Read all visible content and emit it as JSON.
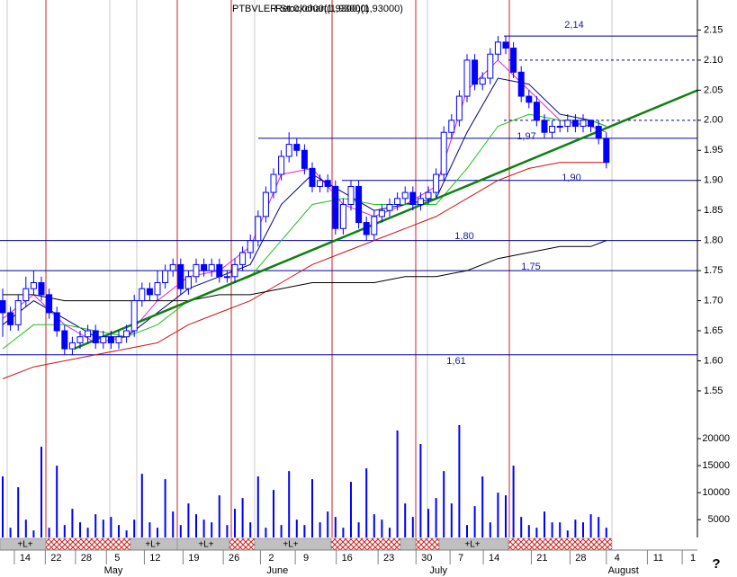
{
  "chart_data": {
    "type": "candlestick",
    "title": "PTBVLER Stockchart(1,93000)",
    "subtitle": "Ret:0,0000(1,9300)(1,93000)",
    "ylim": [
      1.52,
      2.2
    ],
    "yticks": [
      1.55,
      {
        "value": 1.6,
        "label": "1.60"
      },
      1.65,
      {
        "value": 1.7,
        "label": "1.70"
      },
      1.75,
      {
        "value": 1.8,
        "label": "1.80"
      },
      1.85,
      {
        "value": 1.9,
        "label": "1.90"
      },
      1.95,
      {
        "value": 2.0,
        "label": "2.00"
      },
      2.05,
      {
        "value": 2.1,
        "label": "2.10"
      },
      2.15
    ],
    "up_color": "#ffffff",
    "down_color": "#0000ff",
    "edge_color": "#0000ff",
    "ohlc": [
      [
        1.7,
        1.72,
        1.64,
        1.68
      ],
      [
        1.68,
        1.69,
        1.65,
        1.66
      ],
      [
        1.66,
        1.71,
        1.65,
        1.7
      ],
      [
        1.7,
        1.74,
        1.69,
        1.72
      ],
      [
        1.72,
        1.75,
        1.71,
        1.73
      ],
      [
        1.73,
        1.74,
        1.7,
        1.71
      ],
      [
        1.71,
        1.72,
        1.67,
        1.68
      ],
      [
        1.68,
        1.69,
        1.64,
        1.65
      ],
      [
        1.65,
        1.66,
        1.61,
        1.62
      ],
      [
        1.62,
        1.64,
        1.61,
        1.63
      ],
      [
        1.63,
        1.65,
        1.62,
        1.64
      ],
      [
        1.64,
        1.66,
        1.63,
        1.65
      ],
      [
        1.65,
        1.66,
        1.62,
        1.63
      ],
      [
        1.63,
        1.65,
        1.62,
        1.64
      ],
      [
        1.64,
        1.65,
        1.62,
        1.63
      ],
      [
        1.63,
        1.65,
        1.62,
        1.64
      ],
      [
        1.64,
        1.66,
        1.63,
        1.65
      ],
      [
        1.65,
        1.71,
        1.64,
        1.7
      ],
      [
        1.7,
        1.73,
        1.69,
        1.72
      ],
      [
        1.72,
        1.73,
        1.7,
        1.71
      ],
      [
        1.71,
        1.75,
        1.7,
        1.73
      ],
      [
        1.73,
        1.76,
        1.72,
        1.75
      ],
      [
        1.75,
        1.77,
        1.74,
        1.76
      ],
      [
        1.76,
        1.77,
        1.71,
        1.72
      ],
      [
        1.72,
        1.75,
        1.71,
        1.74
      ],
      [
        1.74,
        1.77,
        1.73,
        1.76
      ],
      [
        1.76,
        1.77,
        1.74,
        1.75
      ],
      [
        1.75,
        1.77,
        1.74,
        1.76
      ],
      [
        1.76,
        1.77,
        1.73,
        1.74
      ],
      [
        1.74,
        1.75,
        1.73,
        1.74
      ],
      [
        1.74,
        1.77,
        1.73,
        1.76
      ],
      [
        1.76,
        1.79,
        1.75,
        1.78
      ],
      [
        1.78,
        1.81,
        1.77,
        1.8
      ],
      [
        1.8,
        1.85,
        1.79,
        1.84
      ],
      [
        1.84,
        1.89,
        1.83,
        1.88
      ],
      [
        1.88,
        1.92,
        1.87,
        1.91
      ],
      [
        1.91,
        1.95,
        1.9,
        1.94
      ],
      [
        1.94,
        1.98,
        1.93,
        1.96
      ],
      [
        1.96,
        1.97,
        1.94,
        1.95
      ],
      [
        1.95,
        1.96,
        1.91,
        1.92
      ],
      [
        1.92,
        1.93,
        1.88,
        1.89
      ],
      [
        1.89,
        1.91,
        1.88,
        1.9
      ],
      [
        1.9,
        1.91,
        1.88,
        1.89
      ],
      [
        1.89,
        1.9,
        1.81,
        1.82
      ],
      [
        1.82,
        1.87,
        1.81,
        1.86
      ],
      [
        1.86,
        1.9,
        1.85,
        1.89
      ],
      [
        1.89,
        1.9,
        1.82,
        1.83
      ],
      [
        1.83,
        1.84,
        1.8,
        1.81
      ],
      [
        1.81,
        1.85,
        1.8,
        1.84
      ],
      [
        1.84,
        1.86,
        1.83,
        1.85
      ],
      [
        1.85,
        1.87,
        1.84,
        1.86
      ],
      [
        1.86,
        1.88,
        1.85,
        1.87
      ],
      [
        1.87,
        1.89,
        1.86,
        1.88
      ],
      [
        1.88,
        1.89,
        1.85,
        1.86
      ],
      [
        1.86,
        1.88,
        1.85,
        1.87
      ],
      [
        1.87,
        1.89,
        1.86,
        1.88
      ],
      [
        1.88,
        1.92,
        1.87,
        1.91
      ],
      [
        1.91,
        1.99,
        1.9,
        1.98
      ],
      [
        1.98,
        2.01,
        1.97,
        2.0
      ],
      [
        2.0,
        2.05,
        1.99,
        2.04
      ],
      [
        2.04,
        2.11,
        2.03,
        2.1
      ],
      [
        2.1,
        2.11,
        2.05,
        2.06
      ],
      [
        2.06,
        2.08,
        2.05,
        2.07
      ],
      [
        2.07,
        2.12,
        2.06,
        2.11
      ],
      [
        2.11,
        2.14,
        2.1,
        2.13
      ],
      [
        2.13,
        2.14,
        2.11,
        2.12
      ],
      [
        2.12,
        2.13,
        2.07,
        2.08
      ],
      [
        2.08,
        2.09,
        2.03,
        2.04
      ],
      [
        2.04,
        2.05,
        2.02,
        2.03
      ],
      [
        2.03,
        2.04,
        1.99,
        2.0
      ],
      [
        2.0,
        2.01,
        1.97,
        1.98
      ],
      [
        1.98,
        2.0,
        1.97,
        1.99
      ],
      [
        1.99,
        2.0,
        1.98,
        1.99
      ],
      [
        1.99,
        2.01,
        1.98,
        2.0
      ],
      [
        2.0,
        2.01,
        1.98,
        1.99
      ],
      [
        1.99,
        2.01,
        1.98,
        2.0
      ],
      [
        2.0,
        2.0,
        1.98,
        1.99
      ],
      [
        1.99,
        2.0,
        1.96,
        1.97
      ],
      [
        1.97,
        1.98,
        1.92,
        1.93
      ]
    ],
    "averages": [
      {
        "color": "#e020e0",
        "x": [
          0,
          4,
          8,
          12,
          16,
          20,
          24,
          28,
          32,
          36,
          40,
          44,
          48,
          52,
          56,
          60,
          64,
          68,
          72,
          76,
          78
        ],
        "values": [
          1.67,
          1.71,
          1.66,
          1.63,
          1.64,
          1.7,
          1.74,
          1.75,
          1.79,
          1.91,
          1.92,
          1.86,
          1.84,
          1.86,
          1.89,
          2.05,
          2.1,
          2.05,
          2.0,
          1.99,
          1.98
        ]
      },
      {
        "color": "#000080",
        "x": [
          0,
          4,
          8,
          12,
          16,
          20,
          24,
          28,
          32,
          36,
          40,
          44,
          48,
          52,
          56,
          60,
          64,
          68,
          72,
          76,
          78
        ],
        "values": [
          1.66,
          1.7,
          1.67,
          1.64,
          1.64,
          1.68,
          1.72,
          1.74,
          1.76,
          1.86,
          1.91,
          1.88,
          1.85,
          1.86,
          1.87,
          1.98,
          2.07,
          2.06,
          2.01,
          2.0,
          1.99
        ]
      },
      {
        "color": "#20c020",
        "x": [
          0,
          4,
          8,
          12,
          16,
          20,
          24,
          28,
          32,
          36,
          40,
          44,
          48,
          52,
          56,
          60,
          64,
          68,
          72,
          76,
          78
        ],
        "values": [
          1.62,
          1.66,
          1.66,
          1.65,
          1.64,
          1.66,
          1.7,
          1.72,
          1.74,
          1.8,
          1.86,
          1.87,
          1.86,
          1.86,
          1.86,
          1.92,
          1.99,
          2.01,
          2.0,
          2.0,
          1.99
        ]
      },
      {
        "color": "#d01010",
        "x": [
          0,
          4,
          8,
          12,
          16,
          20,
          24,
          28,
          32,
          36,
          40,
          44,
          48,
          52,
          56,
          60,
          64,
          68,
          72,
          76,
          78
        ],
        "values": [
          1.57,
          1.59,
          1.6,
          1.61,
          1.62,
          1.63,
          1.66,
          1.68,
          1.7,
          1.73,
          1.76,
          1.78,
          1.8,
          1.82,
          1.84,
          1.87,
          1.9,
          1.92,
          1.93,
          1.93,
          1.93
        ]
      },
      {
        "color": "#000000",
        "x": [
          0,
          4,
          8,
          12,
          16,
          20,
          24,
          28,
          32,
          36,
          40,
          44,
          48,
          52,
          56,
          60,
          64,
          68,
          72,
          76,
          78
        ],
        "values": [
          1.71,
          1.71,
          1.7,
          1.7,
          1.7,
          1.7,
          1.7,
          1.71,
          1.71,
          1.72,
          1.73,
          1.73,
          1.73,
          1.74,
          1.74,
          1.75,
          1.77,
          1.78,
          1.79,
          1.79,
          1.8
        ]
      }
    ],
    "trendline": {
      "color": "#108010",
      "x": [
        9.2,
        89.8
      ],
      "values": [
        1.62,
        2.05
      ]
    },
    "levels": [
      {
        "value": 2.14,
        "label": "2,14"
      },
      {
        "value": 2.1,
        "style": "dashed"
      },
      {
        "value": 2.0,
        "style": "dashed"
      },
      {
        "value": 1.97,
        "label": "1,97"
      },
      {
        "value": 1.9,
        "label": "1,90"
      },
      {
        "value": 1.8,
        "label": "1,80"
      },
      {
        "value": 1.75,
        "label": "1,75"
      },
      {
        "value": 1.61,
        "label": "1,61"
      }
    ],
    "level_color": "#0000a0",
    "volume": {
      "color": "#0000ff",
      "ylim": [
        1700,
        25500
      ],
      "yticks": [
        5000,
        10000,
        15000,
        20000
      ],
      "values": [
        13000,
        3500,
        11000,
        5000,
        3000,
        18500,
        3500,
        15000,
        4000,
        7000,
        4500,
        3500,
        6000,
        5000,
        5500,
        4000,
        3000,
        5000,
        13500,
        4500,
        3500,
        12500,
        6500,
        4000,
        8000,
        6000,
        5000,
        4500,
        9500,
        4000,
        7000,
        9000,
        4500,
        13000,
        3500,
        10500,
        4000,
        14000,
        5000,
        4000,
        12500,
        4500,
        6500,
        5500,
        3500,
        12000,
        4500,
        14500,
        6000,
        5000,
        3500,
        21500,
        8000,
        5500,
        19000,
        7000,
        9000,
        14000,
        8000,
        22500,
        4000,
        7500,
        13000,
        4500,
        10000,
        9500,
        15000,
        5500,
        4000,
        3500,
        6500,
        4500,
        4500,
        3000,
        5000,
        4500,
        6000,
        5500,
        3500
      ]
    },
    "xticks": [
      {
        "value": 2.9,
        "label": "14"
      },
      {
        "value": 6.9,
        "label": "22"
      },
      {
        "value": 10.8,
        "label": "28"
      },
      {
        "value": 14.8,
        "label": "5"
      },
      {
        "value": 19.7,
        "label": "12"
      },
      {
        "value": 24.7,
        "label": "19"
      },
      {
        "value": 29.9,
        "label": "26"
      },
      {
        "value": 34.7,
        "label": "2"
      },
      {
        "value": 39.2,
        "label": "9"
      },
      {
        "value": 44.5,
        "label": "16"
      },
      {
        "value": 49.9,
        "label": "23"
      },
      {
        "value": 54.8,
        "label": "30"
      },
      {
        "value": 59.2,
        "label": "7"
      },
      {
        "value": 63.5,
        "label": "14"
      },
      {
        "value": 69.7,
        "label": "21"
      },
      {
        "value": 74.7,
        "label": "28"
      },
      {
        "value": 79.4,
        "label": "4"
      },
      {
        "value": 84.7,
        "label": "11"
      },
      {
        "value": 89.2,
        "label": "1"
      }
    ],
    "months": [
      {
        "value": 14.3,
        "label": "May"
      },
      {
        "value": 35.5,
        "label": "June"
      },
      {
        "value": 56.3,
        "label": "July"
      },
      {
        "value": 80.2,
        "label": "August"
      }
    ],
    "signals": [
      "+L+",
      "+L+",
      "+L+",
      "+L+",
      "+L+"
    ],
    "help": "?"
  }
}
